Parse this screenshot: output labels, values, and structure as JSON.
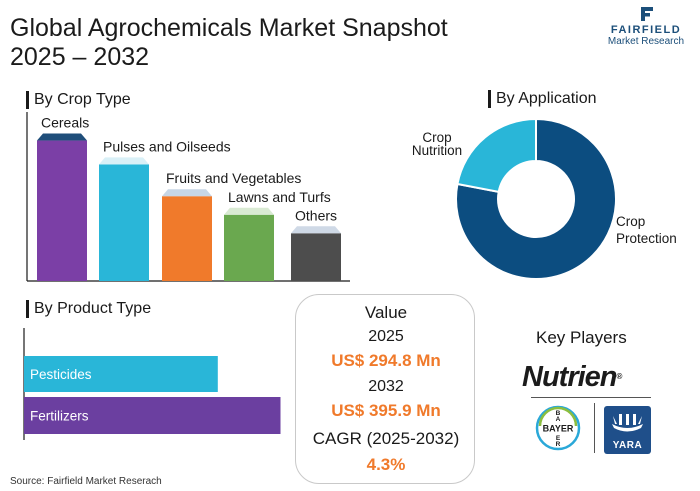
{
  "title_line1": "Global Agrochemicals Market Snapshot",
  "title_line2": "2025 – 2032",
  "logo": {
    "name": "FAIRFIELD",
    "sub": "Market Research",
    "color": "#1c4f7a"
  },
  "sections": {
    "crop": "By Crop Type",
    "application": "By Application",
    "product": "By Product Type"
  },
  "value_box": {
    "heading": "Value",
    "year1": "2025",
    "value1": "US$ 294.8 Mn",
    "year2": "2032",
    "value2": "US$ 395.9 Mn",
    "cagr_label": "CAGR (2025-2032)",
    "cagr_value": "4.3%"
  },
  "key_players": {
    "title": "Key Players",
    "nutrien": "Nutrien",
    "bayer": "BAYER",
    "yara": "YARA"
  },
  "source": "Source: Fairfield Market Reserach",
  "chart_data": [
    {
      "type": "bar",
      "title": "By Crop Type",
      "categories": [
        "Cereals",
        "Pulses and Oilseeds",
        "Fruits and Vegetables",
        "Lawns and Turfs",
        "Others"
      ],
      "values": [
        5.3,
        4.4,
        3.2,
        2.5,
        1.8
      ],
      "colors": [
        "#7b3fa6",
        "#29b6d8",
        "#f07a2b",
        "#6aa84f",
        "#4d4d4d"
      ],
      "top_colors": [
        "#1f4e7a",
        "#d9f0f7",
        "#c7d6e6",
        "#d9ead3",
        "#cfd9e6"
      ]
    },
    {
      "type": "pie",
      "title": "By Application",
      "labels": [
        "Crop Protection",
        "Crop Nutrition"
      ],
      "values": [
        78,
        22
      ],
      "colors": [
        "#0c4d80",
        "#29b6d8"
      ],
      "donut": true
    },
    {
      "type": "bar",
      "orientation": "horizontal",
      "title": "By Product Type",
      "categories": [
        "Pesticides",
        "Fertilizers"
      ],
      "values": [
        68,
        90
      ],
      "colors": [
        "#29b6d8",
        "#6b3fa0"
      ]
    }
  ]
}
